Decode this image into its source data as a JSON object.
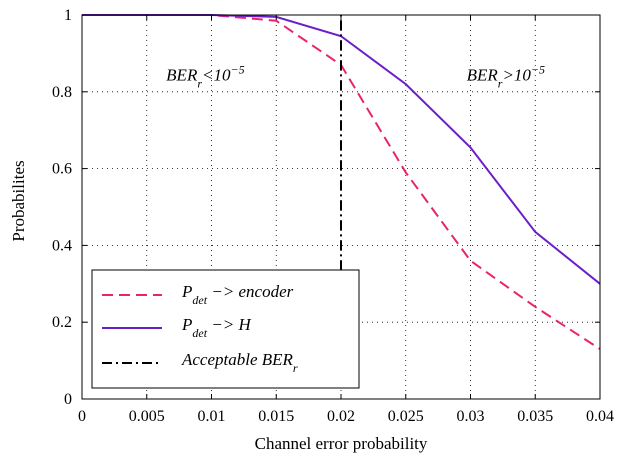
{
  "chart_data": {
    "type": "line",
    "xlabel": "Channel error probability",
    "ylabel": "Probabilites",
    "xlim": [
      0,
      0.04
    ],
    "ylim": [
      0,
      1
    ],
    "xticks": [
      "0",
      "0.005",
      "0.01",
      "0.015",
      "0.02",
      "0.025",
      "0.03",
      "0.035",
      "0.04"
    ],
    "yticks": [
      "0",
      "0.2",
      "0.4",
      "0.6",
      "0.8",
      "1"
    ],
    "grid": true,
    "legend_position": "bottom-left",
    "series": [
      {
        "name": "P_det -> encoder",
        "name_main": "P",
        "name_sub": "det",
        "name_rest": " −> encoder",
        "color": "#e8246e",
        "style": "dashed",
        "x": [
          0,
          0.005,
          0.01,
          0.015,
          0.02,
          0.025,
          0.03,
          0.035,
          0.04
        ],
        "y": [
          1.0,
          1.0,
          1.0,
          0.985,
          0.87,
          0.59,
          0.36,
          0.24,
          0.13
        ]
      },
      {
        "name": "P_det -> H",
        "name_main": "P",
        "name_sub": "det",
        "name_rest": " −> H",
        "color": "#6a1fc8",
        "style": "solid",
        "x": [
          0,
          0.005,
          0.01,
          0.015,
          0.02,
          0.025,
          0.03,
          0.035,
          0.04
        ],
        "y": [
          1.0,
          1.0,
          1.0,
          0.995,
          0.945,
          0.82,
          0.655,
          0.435,
          0.3
        ]
      }
    ],
    "threshold": {
      "name": "Acceptable BER_r",
      "name_main": "Acceptable BER",
      "name_sub": "r",
      "x": 0.02,
      "y_range": [
        0.335,
        1.0
      ],
      "color": "#000000",
      "style": "dash-dot"
    },
    "annotations": [
      {
        "id": "left",
        "x": 0.0065,
        "y": 0.83,
        "main": "BER",
        "sub": "r",
        "rel": "<10",
        "exp": "−5"
      },
      {
        "id": "right",
        "x": 0.0297,
        "y": 0.83,
        "main": "BER",
        "sub": "r",
        "rel": ">10",
        "exp": "−5"
      }
    ]
  }
}
